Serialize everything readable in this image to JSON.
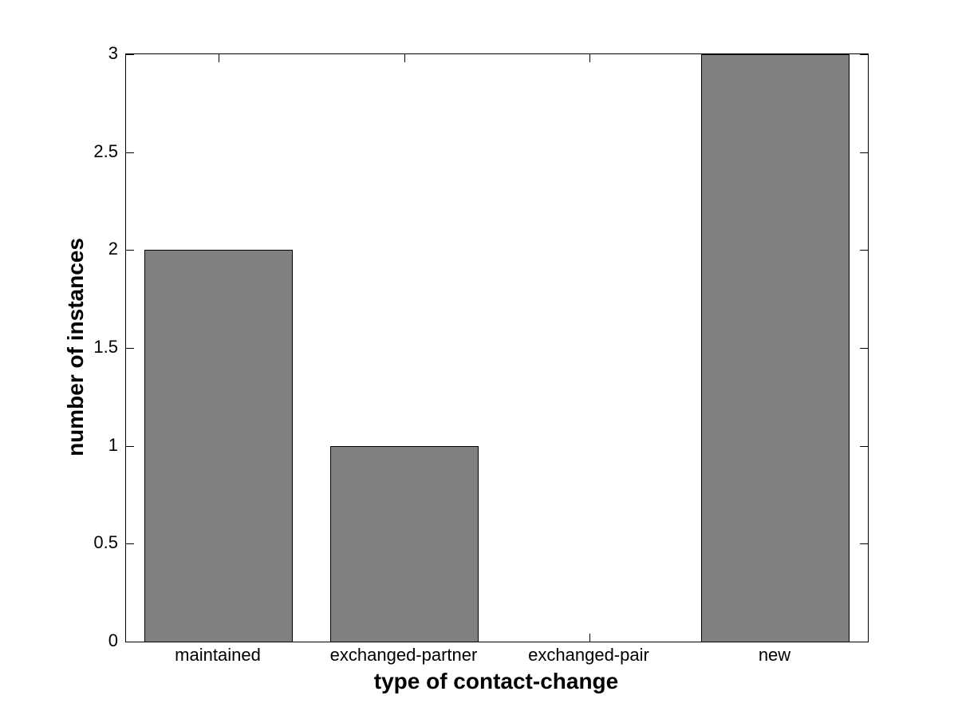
{
  "chart_data": {
    "type": "bar",
    "title": "",
    "categories": [
      "maintained",
      "exchanged-partner",
      "exchanged-pair",
      "new"
    ],
    "values": [
      2,
      1,
      0,
      3
    ],
    "xlabel": "type of contact-change",
    "ylabel": "number of instances",
    "ylim": [
      0,
      3
    ],
    "ytick_values": [
      0,
      0.5,
      1,
      1.5,
      2,
      2.5,
      3
    ],
    "ytick_labels": [
      "0",
      "0.5",
      "1",
      "1.5",
      "2",
      "2.5",
      "3"
    ],
    "legend_position": "none",
    "grid": false,
    "colors": {
      "bar_fill": "#808080",
      "bar_edge": "#000000",
      "axis": "#000000",
      "text": "#000000",
      "background": "#ffffff"
    }
  }
}
